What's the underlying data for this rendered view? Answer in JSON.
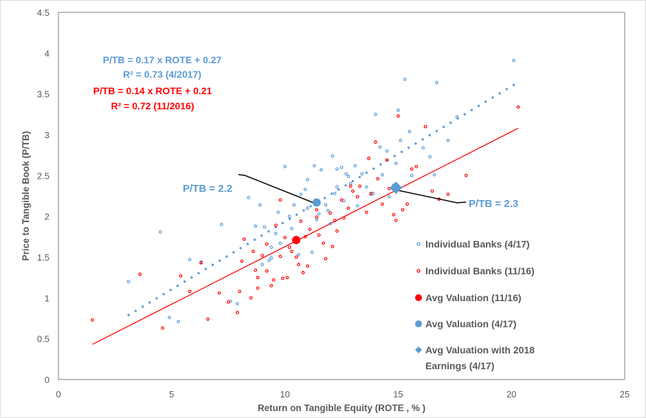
{
  "chart_data": {
    "type": "scatter",
    "title": "",
    "xlabel": "Return on Tangible Equity (ROTE , % )",
    "ylabel": "Price to Tangible Book (P/TB)",
    "xlim": [
      0,
      25
    ],
    "ylim": [
      0,
      4.5
    ],
    "x_ticks": [
      "0",
      "5",
      "10",
      "15",
      "20",
      "25"
    ],
    "y_ticks": [
      "0",
      "0.5",
      "1",
      "1.5",
      "2",
      "2.5",
      "3",
      "3.5",
      "4",
      "4.5"
    ],
    "grid": false,
    "legend_position": "bottom-right",
    "colors": {
      "blue": "#5b9bd5",
      "red": "#ff0000",
      "annotation_line": "#000000"
    },
    "annotations": {
      "eq_blue_line1": "P/TB = 0.17 x ROTE + 0.27",
      "eq_blue_line2": "R² = 0.73 (4/2017)",
      "eq_red_line1": "P/TB = 0.14 x ROTE + 0.21",
      "eq_red_line2": "R² = 0.72 (11/2016)",
      "callout_avg_417": "P/TB = 2.2",
      "callout_avg_2018": "P/TB = 2.3"
    },
    "trendlines": [
      {
        "name": "Trend (4/17)",
        "color": "#5b9bd5",
        "style": "dotted",
        "x_start": 3.1,
        "x_end": 20.1,
        "y_start": 0.79,
        "y_end": 3.61
      },
      {
        "name": "Trend (11/16)",
        "color": "#ff0000",
        "style": "solid",
        "x_start": 1.5,
        "x_end": 20.3,
        "y_start": 0.43,
        "y_end": 3.08
      }
    ],
    "series": [
      {
        "name": "Individual Banks (4/17)",
        "color": "#5b9bd5",
        "marker": "small-ring",
        "points": [
          [
            3.1,
            1.2
          ],
          [
            4.5,
            1.81
          ],
          [
            4.9,
            0.76
          ],
          [
            5.3,
            0.71
          ],
          [
            5.8,
            1.47
          ],
          [
            6.3,
            1.44
          ],
          [
            7.2,
            1.9
          ],
          [
            7.6,
            0.96
          ],
          [
            7.9,
            0.93
          ],
          [
            8.4,
            2.23
          ],
          [
            8.9,
            2.14
          ],
          [
            9.1,
            1.87
          ],
          [
            9.6,
            1.79
          ],
          [
            9.4,
            1.62
          ],
          [
            9.3,
            1.46
          ],
          [
            9.0,
            1.41
          ],
          [
            9.7,
            2.05
          ],
          [
            10.0,
            2.61
          ],
          [
            10.2,
            2.0
          ],
          [
            10.3,
            1.85
          ],
          [
            10.5,
            1.68
          ],
          [
            10.7,
            2.27
          ],
          [
            10.9,
            2.33
          ],
          [
            11.0,
            2.1
          ],
          [
            11.3,
            2.62
          ],
          [
            11.4,
            1.96
          ],
          [
            11.5,
            2.03
          ],
          [
            11.6,
            2.57
          ],
          [
            11.8,
            2.14
          ],
          [
            11.9,
            2.07
          ],
          [
            12.0,
            1.91
          ],
          [
            12.2,
            2.28
          ],
          [
            12.3,
            2.58
          ],
          [
            12.3,
            2.36
          ],
          [
            12.5,
            2.6
          ],
          [
            12.6,
            2.19
          ],
          [
            12.7,
            2.52
          ],
          [
            12.9,
            2.4
          ],
          [
            13.1,
            2.62
          ],
          [
            13.2,
            2.13
          ],
          [
            13.4,
            2.52
          ],
          [
            13.6,
            2.36
          ],
          [
            13.8,
            2.27
          ],
          [
            14.0,
            3.25
          ],
          [
            14.2,
            2.85
          ],
          [
            14.3,
            2.51
          ],
          [
            14.5,
            2.8
          ],
          [
            14.6,
            2.24
          ],
          [
            14.8,
            2.38
          ],
          [
            15.0,
            3.3
          ],
          [
            15.1,
            2.93
          ],
          [
            15.3,
            3.68
          ],
          [
            15.5,
            3.04
          ],
          [
            15.6,
            2.5
          ],
          [
            16.1,
            2.84
          ],
          [
            16.4,
            2.73
          ],
          [
            16.6,
            2.51
          ],
          [
            16.7,
            3.64
          ],
          [
            17.2,
            2.93
          ],
          [
            17.6,
            3.22
          ],
          [
            12.1,
            2.74
          ],
          [
            11.0,
            2.45
          ],
          [
            10.4,
            2.14
          ],
          [
            9.8,
            1.67
          ],
          [
            8.7,
            1.88
          ],
          [
            13.9,
            2.28
          ],
          [
            11.2,
            1.56
          ],
          [
            12.8,
            2.49
          ],
          [
            14.9,
            2.65
          ],
          [
            20.1,
            3.91
          ],
          [
            10.6,
            1.53
          ],
          [
            9.4,
            1.49
          ]
        ]
      },
      {
        "name": "Individual Banks (11/16)",
        "color": "#ff0000",
        "marker": "small-ring",
        "points": [
          [
            1.5,
            0.73
          ],
          [
            3.6,
            1.29
          ],
          [
            4.6,
            0.63
          ],
          [
            5.4,
            1.27
          ],
          [
            5.8,
            1.08
          ],
          [
            6.3,
            1.43
          ],
          [
            6.6,
            0.74
          ],
          [
            7.1,
            1.06
          ],
          [
            7.5,
            0.95
          ],
          [
            7.9,
            0.82
          ],
          [
            8.1,
            1.45
          ],
          [
            8.2,
            1.72
          ],
          [
            8.5,
            1.0
          ],
          [
            8.6,
            1.57
          ],
          [
            8.7,
            1.34
          ],
          [
            8.8,
            1.25
          ],
          [
            8.8,
            1.12
          ],
          [
            9.0,
            1.52
          ],
          [
            9.2,
            1.33
          ],
          [
            9.4,
            1.15
          ],
          [
            9.5,
            1.22
          ],
          [
            9.6,
            1.89
          ],
          [
            9.8,
            1.51
          ],
          [
            9.9,
            1.24
          ],
          [
            10.1,
            1.25
          ],
          [
            10.0,
            1.74
          ],
          [
            10.2,
            1.62
          ],
          [
            10.3,
            1.57
          ],
          [
            10.5,
            1.5
          ],
          [
            10.6,
            1.41
          ],
          [
            10.8,
            1.31
          ],
          [
            10.9,
            1.75
          ],
          [
            11.0,
            1.39
          ],
          [
            11.1,
            1.84
          ],
          [
            11.4,
            1.99
          ],
          [
            11.5,
            1.77
          ],
          [
            11.7,
            1.67
          ],
          [
            11.8,
            1.48
          ],
          [
            12.0,
            2.04
          ],
          [
            12.1,
            1.63
          ],
          [
            12.2,
            1.95
          ],
          [
            12.3,
            1.82
          ],
          [
            12.5,
            2.2
          ],
          [
            12.6,
            1.98
          ],
          [
            12.8,
            2.1
          ],
          [
            13.0,
            2.31
          ],
          [
            13.2,
            2.24
          ],
          [
            13.3,
            2.37
          ],
          [
            13.6,
            2.05
          ],
          [
            13.8,
            2.28
          ],
          [
            14.0,
            2.91
          ],
          [
            14.1,
            2.46
          ],
          [
            14.3,
            2.15
          ],
          [
            14.5,
            2.69
          ],
          [
            14.6,
            2.34
          ],
          [
            14.8,
            2.02
          ],
          [
            15.2,
            2.08
          ],
          [
            15.4,
            2.15
          ],
          [
            15.0,
            3.23
          ],
          [
            16.2,
            3.1
          ],
          [
            16.5,
            2.31
          ],
          [
            16.8,
            2.21
          ],
          [
            17.2,
            2.27
          ],
          [
            18.0,
            2.5
          ],
          [
            20.3,
            3.34
          ],
          [
            15.8,
            2.61
          ],
          [
            9.8,
            2.2
          ],
          [
            12.9,
            2.37
          ],
          [
            13.7,
            2.71
          ],
          [
            11.4,
            2.08
          ],
          [
            10.7,
            1.94
          ],
          [
            15.6,
            2.58
          ],
          [
            14.9,
            1.95
          ],
          [
            9.2,
            1.66
          ],
          [
            8.0,
            1.08
          ]
        ]
      },
      {
        "name": "Avg Valuation (11/16)",
        "color": "#ff0000",
        "marker": "large-circle",
        "points": [
          [
            10.5,
            1.71
          ]
        ]
      },
      {
        "name": "Avg Valuation (4/17)",
        "color": "#5b9bd5",
        "marker": "large-circle",
        "points": [
          [
            11.4,
            2.17
          ]
        ]
      },
      {
        "name": "Avg Valuation with 2018 Earnings (4/17)",
        "color": "#5b9bd5",
        "marker": "diamond",
        "points": [
          [
            14.9,
            2.35
          ]
        ]
      }
    ],
    "legend": [
      {
        "label": "Individual Banks (4/17)",
        "marker": "small-ring",
        "color": "#5b9bd5"
      },
      {
        "label": "Individual Banks (11/16)",
        "marker": "small-ring",
        "color": "#ff0000"
      },
      {
        "label": "Avg Valuation (11/16)",
        "marker": "large-circle",
        "color": "#ff0000"
      },
      {
        "label": "Avg Valuation (4/17)",
        "marker": "large-circle",
        "color": "#5b9bd5"
      },
      {
        "label_line1": "Avg Valuation with 2018",
        "label_line2": "Earnings (4/17)",
        "marker": "diamond",
        "color": "#5b9bd5"
      }
    ]
  }
}
